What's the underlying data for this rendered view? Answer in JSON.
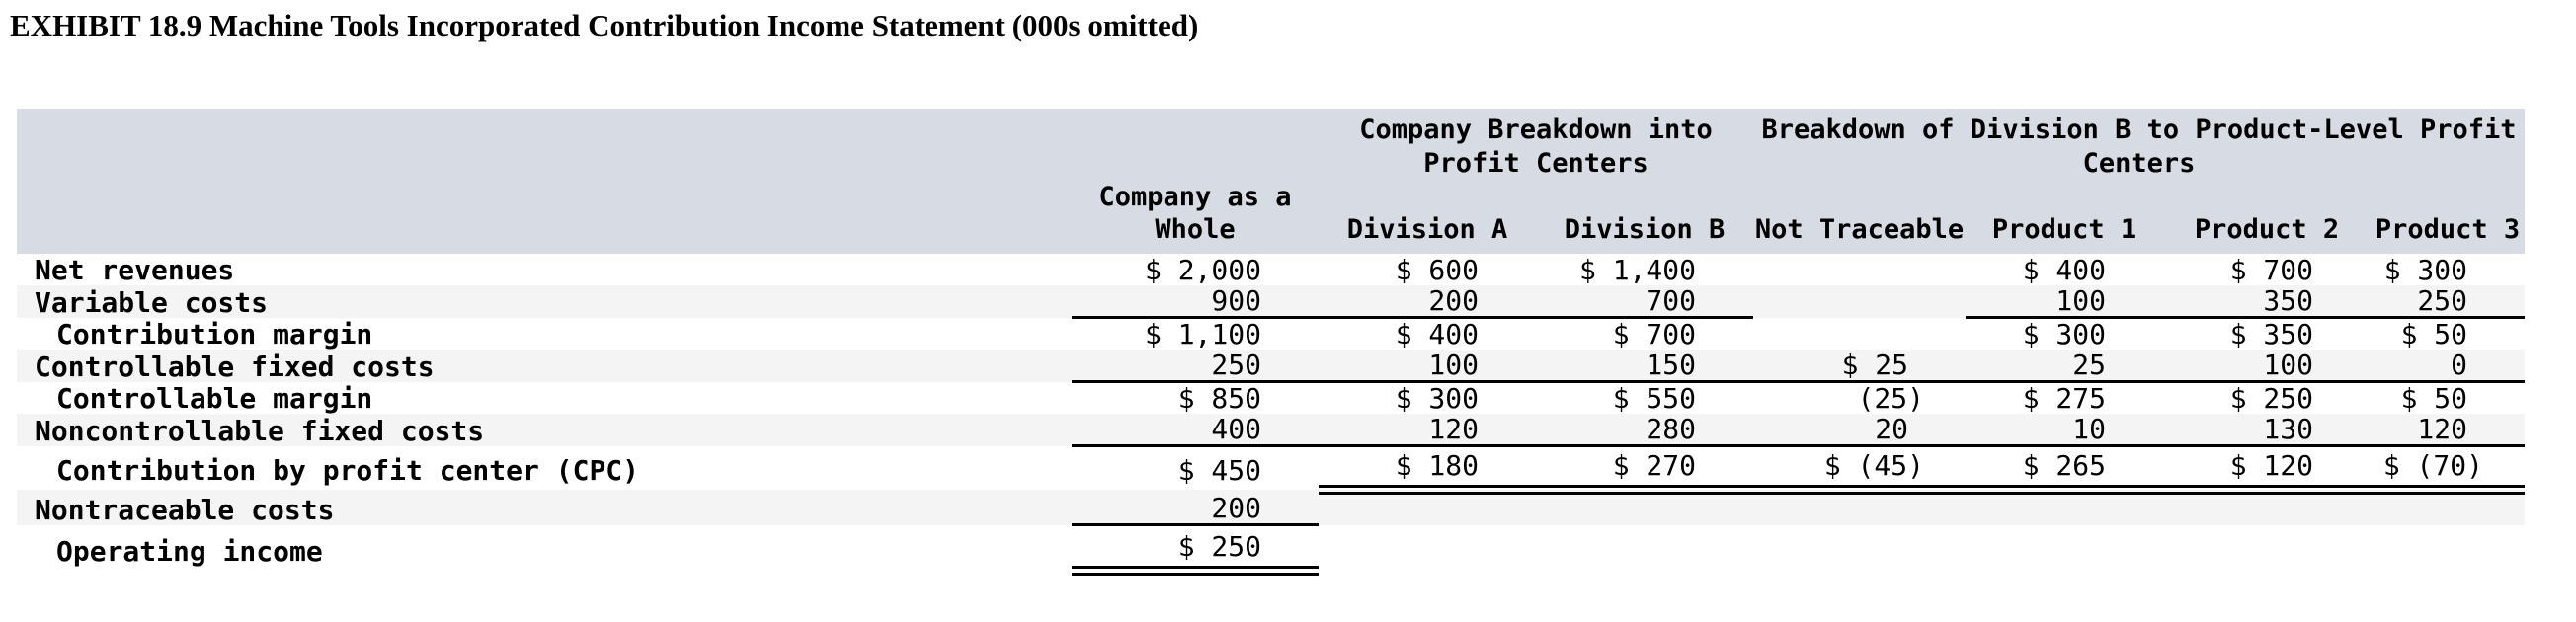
{
  "title": "EXHIBIT 18.9 Machine Tools Incorporated Contribution Income Statement (000s omitted)",
  "colors": {
    "header_band": "#d7dbe3",
    "row_stripe": "#f4f4f5",
    "rule": "#000000",
    "text": "#000000"
  },
  "table": {
    "group_headers": [
      {
        "label": "Company Breakdown into Profit Centers"
      },
      {
        "label": "Breakdown of Division B to Product-Level Profit Centers"
      }
    ],
    "columns": [
      "Company as a Whole",
      "Division A",
      "Division B",
      "Not Traceable",
      "Product 1",
      "Product 2",
      "Product 3"
    ],
    "rows": [
      {
        "label": "Net revenues",
        "indent": false,
        "values": [
          "$ 2,000",
          "$ 600",
          "$ 1,400",
          "",
          "$ 400",
          "$ 700",
          "$ 300"
        ]
      },
      {
        "label": "Variable costs",
        "indent": false,
        "values": [
          "900",
          "200",
          "700",
          "",
          "100",
          "350",
          "250"
        ]
      },
      {
        "label": "Contribution margin",
        "indent": true,
        "values": [
          "$ 1,100",
          "$ 400",
          "$ 700",
          "",
          "$ 300",
          "$ 350",
          "$ 50"
        ]
      },
      {
        "label": "Controllable fixed costs",
        "indent": false,
        "values": [
          "250",
          "100",
          "150",
          "$ 25",
          "25",
          "100",
          "0"
        ]
      },
      {
        "label": "Controllable margin",
        "indent": true,
        "values": [
          "$ 850",
          "$ 300",
          "$ 550",
          "(25)",
          "$ 275",
          "$ 250",
          "$ 50"
        ]
      },
      {
        "label": "Noncontrollable fixed costs",
        "indent": false,
        "values": [
          "400",
          "120",
          "280",
          "20",
          "10",
          "130",
          "120"
        ]
      },
      {
        "label": "Contribution by profit center (CPC)",
        "indent": true,
        "values": [
          "$ 450",
          "$ 180",
          "$ 270",
          "$ (45)",
          "$ 265",
          "$ 120",
          "$ (70)"
        ]
      },
      {
        "label": "Nontraceable costs",
        "indent": false,
        "values": [
          "200",
          "",
          "",
          "",
          "",
          "",
          ""
        ]
      },
      {
        "label": "Operating income",
        "indent": true,
        "values": [
          "$ 250",
          "",
          "",
          "",
          "",
          "",
          ""
        ]
      }
    ]
  }
}
